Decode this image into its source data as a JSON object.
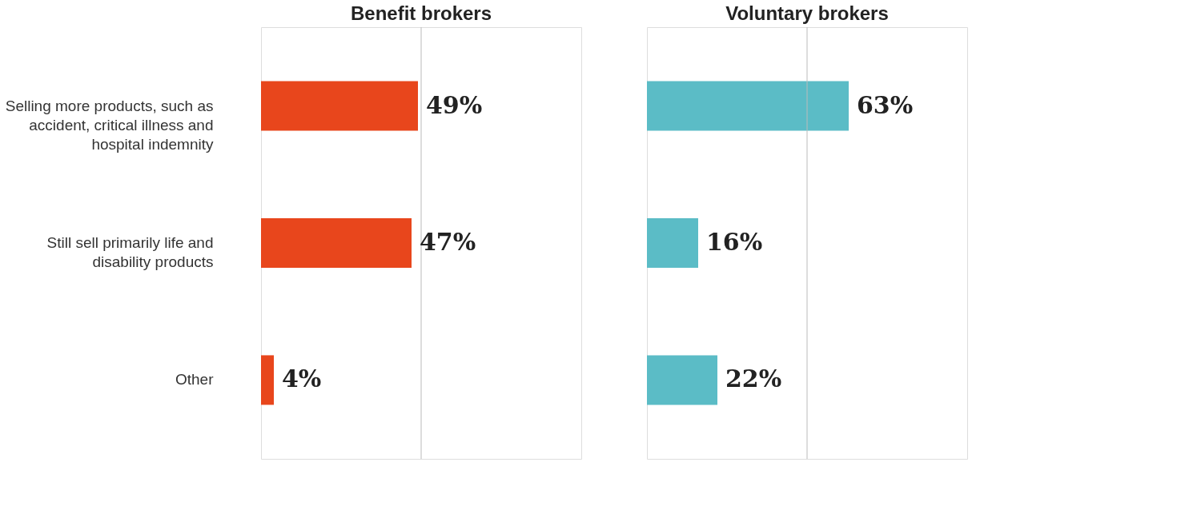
{
  "chart_data": [
    {
      "type": "bar",
      "orientation": "horizontal",
      "title": "Benefit brokers",
      "categories": [
        "Selling more products, such as accident, critical illness and hospital indemnity",
        "Still sell primarily life and disability products",
        "Other"
      ],
      "values": [
        49,
        47,
        4
      ],
      "color": "#e8461c",
      "value_labels": [
        "49%",
        "47%",
        "4%"
      ],
      "xlim": [
        0,
        100
      ],
      "ref_lines": [
        {
          "axis": "x",
          "value": 50,
          "color": "#bbbbbb"
        }
      ],
      "tick_labels": "y"
    },
    {
      "type": "bar",
      "orientation": "horizontal",
      "title": "Voluntary brokers",
      "categories": [
        null,
        null,
        null
      ],
      "values": [
        63,
        16,
        22
      ],
      "color": "#5bbcc6",
      "value_labels": [
        "63%",
        "16%",
        "22%"
      ],
      "xlim": [
        0,
        100
      ],
      "ref_lines": [
        {
          "axis": "x",
          "value": 50,
          "color": "#bbbbbb"
        }
      ],
      "tick_labels": false
    }
  ]
}
